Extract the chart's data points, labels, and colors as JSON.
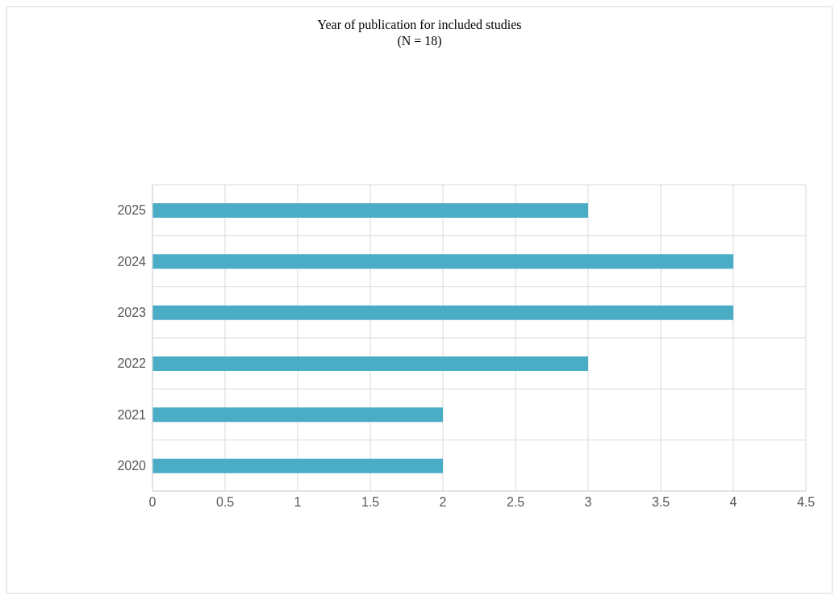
{
  "chart_data": {
    "type": "bar",
    "orientation": "horizontal",
    "title": "Year of publication for included studies",
    "subtitle": "(N = 18)",
    "categories": [
      "2025",
      "2024",
      "2023",
      "2022",
      "2021",
      "2020"
    ],
    "values": [
      3,
      4,
      4,
      3,
      2,
      2
    ],
    "color": "#4bacc6",
    "xlim": [
      0,
      4.5
    ],
    "xticks": [
      0,
      0.5,
      1,
      1.5,
      2,
      2.5,
      3,
      3.5,
      4,
      4.5
    ],
    "grid": true
  }
}
